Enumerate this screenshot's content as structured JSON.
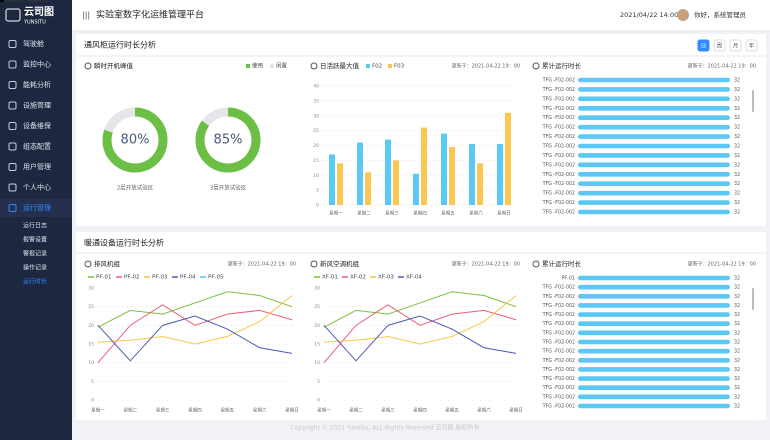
{
  "sidebar": {
    "logo": "云司图",
    "logo_sub": "YUNSITU",
    "menu": [
      "驾驶舱",
      "监控中心",
      "能耗分析",
      "设施管理",
      "设备维保",
      "组态配置",
      "用户管理",
      "个人中心",
      "运行管理"
    ],
    "submenu": [
      "运行日志",
      "报警设置",
      "警报记录",
      "操作记录",
      "运行时长"
    ]
  },
  "header": {
    "title": "实验室数字化运维管理平台",
    "datetime": "2021/04/22   14:00",
    "user": "你好，系统管理员"
  },
  "sections": [
    {
      "title": "通风柜运行时长分析",
      "tabs": [
        "日",
        "周",
        "月",
        "年"
      ]
    },
    {
      "title": "暖通设备运行时长分析"
    }
  ],
  "footer": "Copyright © 2021 Yunsitu, ALL Rights Reserved 云司图 版权所有",
  "chart_data": [
    {
      "type": "donut",
      "title": "瞬时开机峰值",
      "legend": [
        "使用",
        "闲置"
      ],
      "colors": [
        "#6cbf45",
        "#e4e6ea"
      ],
      "donuts": [
        {
          "value": 80,
          "label": "80%",
          "caption": "2层开放试验区"
        },
        {
          "value": 85,
          "label": "85%",
          "caption": "3层开放试验区"
        }
      ]
    },
    {
      "type": "bar",
      "title": "日活跃最大值",
      "updated": "更新于：2021-04-22 19：00",
      "categories": [
        "星期一",
        "星期二",
        "星期三",
        "星期四",
        "星期五",
        "星期六",
        "星期日"
      ],
      "series": [
        {
          "name": "F02",
          "color": "#5bc8f5",
          "values": [
            17,
            21,
            22,
            10.5,
            24,
            20.5,
            20.5
          ]
        },
        {
          "name": "F03",
          "color": "#f8c850",
          "values": [
            14,
            11,
            15,
            26,
            19.5,
            14,
            31
          ]
        }
      ],
      "ylim": [
        0,
        40
      ],
      "yticks": [
        0,
        5,
        10,
        15,
        20,
        25,
        30,
        35,
        40
      ],
      "grid": true
    },
    {
      "type": "hbar",
      "title": "累计运行时长",
      "updated": "更新于：2021-04-22 19：00",
      "color": "#5bc8f5",
      "categories": [
        "TFG -F02-002",
        "TFG -F02-002",
        "TFG -F02-002",
        "TFG -F02-002",
        "TFG -F02-002",
        "TFG -F02-002",
        "TFG -F02-002",
        "TFG -F02-002",
        "TFG -F02-002",
        "TFG -F02-002",
        "TFG -F02-002",
        "TFG -F02-002",
        "TFG -F02-002",
        "TFG -F02-002",
        "TFG -F02-002"
      ],
      "values": [
        32,
        32,
        32,
        32,
        32,
        32,
        32,
        32,
        32,
        32,
        32,
        32,
        32,
        32,
        32
      ]
    },
    {
      "type": "line",
      "title": "排风机组",
      "updated": "更新于：2021-04-22 19：00",
      "categories": [
        "星期一",
        "星期二",
        "星期三",
        "星期四",
        "星期五",
        "星期六",
        "星期日"
      ],
      "series": [
        {
          "name": "PF-01",
          "color": "#7ac143",
          "values": [
            19.5,
            24,
            23,
            26,
            29,
            28,
            25
          ]
        },
        {
          "name": "PF-02",
          "color": "#e8607a",
          "values": [
            10,
            20,
            25.5,
            20,
            23,
            24,
            21.5
          ]
        },
        {
          "name": "PF-03",
          "color": "#f5c84a",
          "values": [
            15.5,
            16,
            17,
            15,
            17,
            21,
            28
          ]
        },
        {
          "name": "PF-04",
          "color": "#4a5bb5",
          "values": [
            20,
            10.5,
            20,
            22.5,
            19,
            14,
            12.5
          ]
        },
        {
          "name": "PF-05",
          "color": "#5bc8f5",
          "values": [
            null,
            null,
            null,
            null,
            null,
            null,
            null
          ]
        }
      ],
      "ylim": [
        0,
        30
      ],
      "yticks": [
        0,
        5,
        10,
        15,
        20,
        25,
        30
      ],
      "grid": true
    },
    {
      "type": "line",
      "title": "新风空调机组",
      "updated": "更新于：2021-04-22 19：00",
      "categories": [
        "星期一",
        "星期二",
        "星期三",
        "星期四",
        "星期五",
        "星期六",
        "星期日"
      ],
      "series": [
        {
          "name": "XF-01",
          "color": "#7ac143",
          "values": [
            19.5,
            24,
            23,
            26,
            29,
            28,
            25
          ]
        },
        {
          "name": "XF-02",
          "color": "#e8607a",
          "values": [
            10,
            20,
            25.5,
            20,
            23,
            24,
            21.5
          ]
        },
        {
          "name": "XF-03",
          "color": "#f5c84a",
          "values": [
            15.5,
            16,
            17,
            15,
            17,
            21,
            28
          ]
        },
        {
          "name": "XF-04",
          "color": "#4a5bb5",
          "values": [
            20,
            10.5,
            20,
            22.5,
            19,
            14,
            12.5
          ]
        }
      ],
      "ylim": [
        0,
        30
      ],
      "yticks": [
        0,
        5,
        10,
        15,
        20,
        25,
        30
      ],
      "grid": true
    },
    {
      "type": "hbar",
      "title": "累计运行时长",
      "updated": "更新于：2021-04-22 19：00",
      "color": "#5bc8f5",
      "categories": [
        "PF-01",
        "TFG -F02-002",
        "TFG -F02-002",
        "TFG -F02-002",
        "TFG -F02-002",
        "TFG -F02-002",
        "TFG -F02-002",
        "TFG -F02-002",
        "TFG -F02-002",
        "TFG -F02-002",
        "TFG -F02-002",
        "TFG -F02-002",
        "TFG -F02-002",
        "TFG -F02-002",
        "TFG -F02-002"
      ],
      "values": [
        32,
        32,
        32,
        32,
        32,
        32,
        32,
        32,
        32,
        32,
        32,
        32,
        32,
        32,
        32
      ]
    }
  ]
}
